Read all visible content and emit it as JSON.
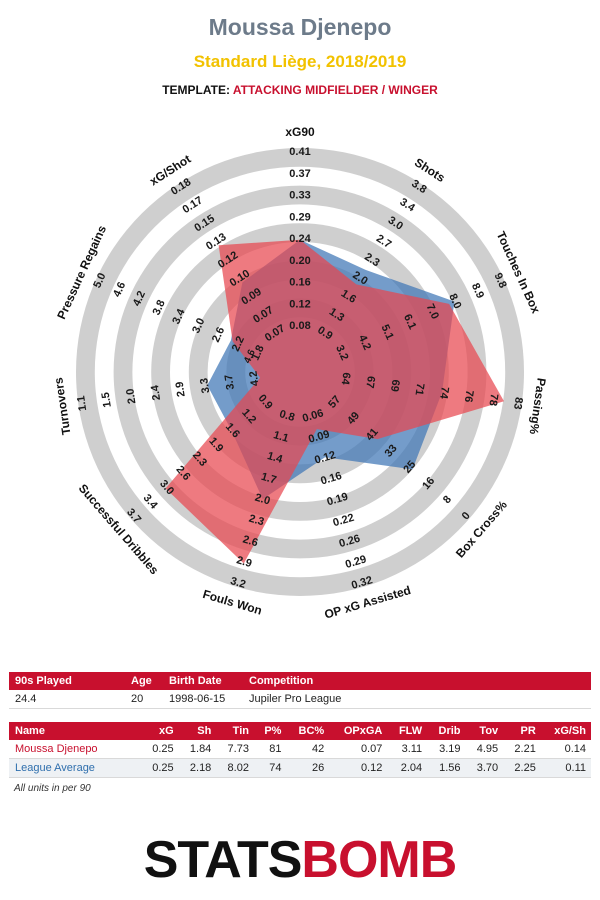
{
  "header": {
    "player_name": "Moussa Djenepo",
    "club_season": "Standard Liège, 2018/2019",
    "template_label": "TEMPLATE:",
    "template_value": "ATTACKING MIDFIELDER / WINGER"
  },
  "colors": {
    "player": "#e8474f",
    "league": "#3f76b5",
    "ring_dark": "#cfcfcf",
    "ring_light": "#ffffff",
    "accent": "#c8102e",
    "title": "#6d7b8a",
    "subtitle": "#f2c200"
  },
  "chart_data": {
    "type": "radar",
    "rings": 5,
    "axes": [
      {
        "label": "xG90",
        "ticks": [
          "0.08",
          "0.12",
          "0.16",
          "0.20",
          "0.24",
          "0.29",
          "0.33",
          "0.37",
          "0.41"
        ],
        "min": 0.04,
        "max": 0.45,
        "player": 0.25,
        "league": 0.25
      },
      {
        "label": "Shots",
        "ticks": [
          "0.9",
          "1.3",
          "1.6",
          "2.0",
          "2.3",
          "2.7",
          "3.0",
          "3.4",
          "3.8"
        ],
        "min": 0.5,
        "max": 4.2,
        "player": 1.84,
        "league": 2.18
      },
      {
        "label": "Touches In Box",
        "ticks": [
          "3.2",
          "4.2",
          "5.1",
          "6.1",
          "7.0",
          "8.0",
          "8.9",
          "9.8"
        ],
        "min": 1.3,
        "max": 10.75,
        "player": 7.73,
        "league": 8.02
      },
      {
        "label": "Passing%",
        "ticks": [
          "64",
          "67",
          "69",
          "71",
          "74",
          "76",
          "78",
          "83"
        ],
        "min": 62.0,
        "max": 83.0,
        "player": 81,
        "league": 74
      },
      {
        "label": "Box Cross%",
        "ticks": [
          "57",
          "49",
          "41",
          "33",
          "25",
          "16",
          "8",
          "0"
        ],
        "min": 65.0,
        "max": 0.0,
        "player": 42,
        "league": 26
      },
      {
        "label": "OP xG Assisted",
        "ticks": [
          "0.06",
          "0.09",
          "0.12",
          "0.16",
          "0.19",
          "0.22",
          "0.26",
          "0.29",
          "0.32"
        ],
        "min": 0.03,
        "max": 0.35,
        "player": 0.07,
        "league": 0.12
      },
      {
        "label": "Fouls Won",
        "ticks": [
          "0.8",
          "1.1",
          "1.4",
          "1.7",
          "2.0",
          "2.3",
          "2.6",
          "2.9",
          "3.2"
        ],
        "min": 0.5,
        "max": 3.5,
        "player": 3.11,
        "league": 2.04
      },
      {
        "label": "Successful Dribbles",
        "ticks": [
          "0.9",
          "1.2",
          "1.6",
          "1.9",
          "2.3",
          "2.6",
          "3.0",
          "3.4",
          "3.7"
        ],
        "min": 0.55,
        "max": 4.05,
        "player": 3.19,
        "league": 1.56
      },
      {
        "label": "Turnovers",
        "ticks": [
          "4.2",
          "3.7",
          "3.3",
          "2.9",
          "2.4",
          "2.0",
          "1.5",
          "1.1"
        ],
        "min": 5.05,
        "max": 0.65,
        "player": 4.95,
        "league": 3.7
      },
      {
        "label": "Pressure Regains",
        "ticks": [
          "1.8",
          "2.2",
          "2.6",
          "3.0",
          "3.4",
          "3.8",
          "4.2",
          "4.6",
          "5.0"
        ],
        "min": 1.4,
        "max": 5.4,
        "player": 2.21,
        "league": 2.25
      },
      {
        "label": "xG/Shot",
        "ticks": [
          "0.07",
          "0.07",
          "0.09",
          "0.10",
          "0.12",
          "0.13",
          "0.15",
          "0.17",
          "0.18"
        ],
        "min": 0.062,
        "max": 0.19,
        "player": 0.14,
        "league": 0.11
      }
    ],
    "extra_tick": {
      "axis": 9,
      "label": "4.6",
      "note": "small inner label"
    }
  },
  "info_table": {
    "headers": [
      "90s Played",
      "Age",
      "Birth Date",
      "Competition"
    ],
    "row": [
      "24.4",
      "20",
      "1998-06-15",
      "Jupiler Pro League"
    ]
  },
  "stats_table": {
    "headers": [
      "Name",
      "xG",
      "Sh",
      "Tin",
      "P%",
      "BC%",
      "OPxGA",
      "FLW",
      "Drib",
      "Tov",
      "PR",
      "xG/Sh"
    ],
    "rows": [
      [
        "Moussa Djenepo",
        "0.25",
        "1.84",
        "7.73",
        "81",
        "42",
        "0.07",
        "3.11",
        "3.19",
        "4.95",
        "2.21",
        "0.14"
      ],
      [
        "League Average",
        "0.25",
        "2.18",
        "8.02",
        "74",
        "26",
        "0.12",
        "2.04",
        "1.56",
        "3.70",
        "2.25",
        "0.11"
      ]
    ]
  },
  "units_note": "All units in per 90",
  "logo": {
    "part1": "STATS",
    "part2": "BOMB"
  }
}
